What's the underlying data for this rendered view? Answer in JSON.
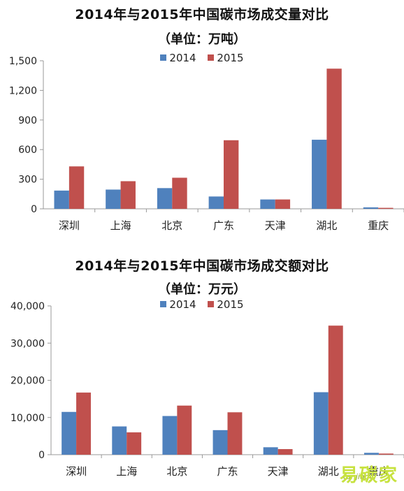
{
  "colors": {
    "s2014": "#4F81BD",
    "s2015": "#C0504D",
    "axis": "#999999",
    "text": "#111111"
  },
  "watermark": {
    "brand": "易碳家",
    "url": "tanjiaoyi"
  },
  "chart_data": [
    {
      "type": "bar",
      "title": "2014年与2015年中国碳市场成交量对比",
      "subtitle": "（单位：万吨）",
      "categories": [
        "深圳",
        "上海",
        "北京",
        "广东",
        "天津",
        "湖北",
        "重庆"
      ],
      "series": [
        {
          "name": "2014",
          "values": [
            185,
            195,
            210,
            125,
            95,
            700,
            15
          ]
        },
        {
          "name": "2015",
          "values": [
            430,
            280,
            315,
            695,
            95,
            1420,
            10
          ]
        }
      ],
      "ylim": [
        0,
        1500
      ],
      "yticks": [
        0,
        300,
        600,
        900,
        1200,
        1500
      ],
      "ytick_labels": [
        "0",
        "300",
        "600",
        "900",
        "1,200",
        "1,500"
      ],
      "legend": "top-center",
      "grid": false
    },
    {
      "type": "bar",
      "title": "2014年与2015年中国碳市场成交额对比",
      "subtitle": "（单位：万元）",
      "categories": [
        "深圳",
        "上海",
        "北京",
        "广东",
        "天津",
        "湖北",
        "重庆"
      ],
      "series": [
        {
          "name": "2014",
          "values": [
            11500,
            7600,
            10400,
            6600,
            2000,
            16800,
            500
          ]
        },
        {
          "name": "2015",
          "values": [
            16700,
            6000,
            13200,
            11400,
            1500,
            34700,
            300
          ]
        }
      ],
      "ylim": [
        0,
        40000
      ],
      "yticks": [
        0,
        10000,
        20000,
        30000,
        40000
      ],
      "ytick_labels": [
        "0",
        "10,000",
        "20,000",
        "30,000",
        "40,000"
      ],
      "legend": "top-center",
      "grid": false
    }
  ]
}
